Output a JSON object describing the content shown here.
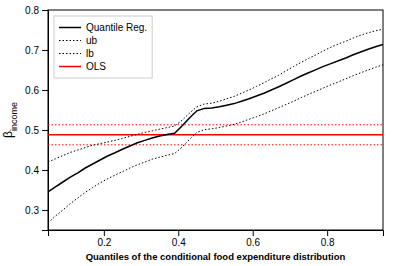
{
  "chart_data": {
    "type": "line",
    "x_label": "Quantiles of the conditional food expenditure distribution",
    "y_label": "βincome",
    "xlim": [
      0.05,
      0.95
    ],
    "ylim": [
      0.25,
      0.8
    ],
    "xticks": [
      0.2,
      0.4,
      0.6,
      0.8
    ],
    "yticks": [
      0.3,
      0.4,
      0.5,
      0.6,
      0.7,
      0.8
    ],
    "grid": false,
    "legend": "upper left",
    "x": [
      0.05,
      0.07,
      0.09,
      0.11,
      0.13,
      0.15,
      0.17,
      0.19,
      0.21,
      0.23,
      0.25,
      0.27,
      0.29,
      0.31,
      0.33,
      0.35,
      0.37,
      0.39,
      0.41,
      0.43,
      0.45,
      0.47,
      0.49,
      0.51,
      0.53,
      0.55,
      0.57,
      0.59,
      0.61,
      0.63,
      0.65,
      0.67,
      0.69,
      0.71,
      0.73,
      0.75,
      0.77,
      0.79,
      0.81,
      0.83,
      0.85,
      0.87,
      0.89,
      0.91,
      0.93,
      0.95
    ],
    "series": [
      {
        "name": "Quantile Reg.",
        "color": "black",
        "line_style": "solid",
        "values": [
          0.345,
          0.358,
          0.37,
          0.382,
          0.393,
          0.405,
          0.415,
          0.425,
          0.435,
          0.443,
          0.452,
          0.46,
          0.468,
          0.474,
          0.48,
          0.485,
          0.489,
          0.492,
          0.51,
          0.53,
          0.548,
          0.554,
          0.555,
          0.558,
          0.562,
          0.566,
          0.572,
          0.578,
          0.585,
          0.592,
          0.6,
          0.608,
          0.617,
          0.626,
          0.635,
          0.643,
          0.651,
          0.659,
          0.666,
          0.673,
          0.68,
          0.688,
          0.695,
          0.702,
          0.708,
          0.714
        ]
      },
      {
        "name": "ub",
        "color": "black",
        "line_style": "dotted",
        "values": [
          0.42,
          0.428,
          0.436,
          0.444,
          0.45,
          0.456,
          0.462,
          0.466,
          0.47,
          0.474,
          0.479,
          0.484,
          0.489,
          0.494,
          0.498,
          0.502,
          0.506,
          0.51,
          0.524,
          0.542,
          0.558,
          0.565,
          0.567,
          0.572,
          0.578,
          0.584,
          0.592,
          0.6,
          0.609,
          0.618,
          0.628,
          0.637,
          0.648,
          0.659,
          0.669,
          0.679,
          0.688,
          0.698,
          0.707,
          0.715,
          0.722,
          0.73,
          0.737,
          0.743,
          0.748,
          0.752
        ]
      },
      {
        "name": "lb",
        "color": "black",
        "line_style": "dotted",
        "values": [
          0.268,
          0.285,
          0.3,
          0.316,
          0.33,
          0.344,
          0.356,
          0.368,
          0.378,
          0.387,
          0.396,
          0.405,
          0.413,
          0.42,
          0.427,
          0.432,
          0.437,
          0.441,
          0.457,
          0.476,
          0.494,
          0.501,
          0.503,
          0.506,
          0.51,
          0.514,
          0.52,
          0.527,
          0.533,
          0.54,
          0.548,
          0.556,
          0.564,
          0.572,
          0.581,
          0.589,
          0.597,
          0.605,
          0.613,
          0.62,
          0.628,
          0.636,
          0.643,
          0.65,
          0.657,
          0.663
        ]
      }
    ],
    "hlines": [
      {
        "name": "OLS",
        "value": 0.488,
        "color": "red",
        "line_style": "solid"
      },
      {
        "value": 0.513,
        "color": "red",
        "line_style": "dotted"
      },
      {
        "value": 0.463,
        "color": "red",
        "line_style": "dotted"
      }
    ]
  }
}
